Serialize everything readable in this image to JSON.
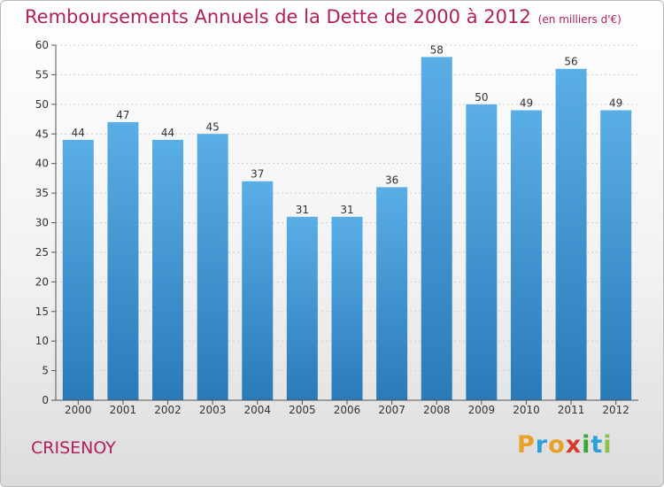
{
  "title": "Remboursements Annuels de la Dette de 2000 à 2012",
  "subtitle": "(en milliers d'€)",
  "commune": "CRISENOY",
  "logo": {
    "letters": [
      "P",
      "r",
      "o",
      "x",
      "i",
      "t",
      "i"
    ],
    "colors": [
      "#e8a228",
      "#2f9fd8",
      "#e8a228",
      "#d93b2b",
      "#3aa63a",
      "#2f9fd8",
      "#8bc34a"
    ]
  },
  "chart_data": {
    "type": "bar",
    "categories": [
      "2000",
      "2001",
      "2002",
      "2003",
      "2004",
      "2005",
      "2006",
      "2007",
      "2008",
      "2009",
      "2010",
      "2011",
      "2012"
    ],
    "values": [
      44,
      47,
      44,
      45,
      37,
      31,
      31,
      36,
      58,
      50,
      49,
      56,
      49
    ],
    "ylim": [
      0,
      60
    ],
    "yticks": [
      0,
      5,
      10,
      15,
      20,
      25,
      30,
      35,
      40,
      45,
      50,
      55,
      60
    ],
    "grid": true,
    "bar_color_top": "#5aaee6",
    "bar_color_bottom": "#2a7ab8"
  }
}
